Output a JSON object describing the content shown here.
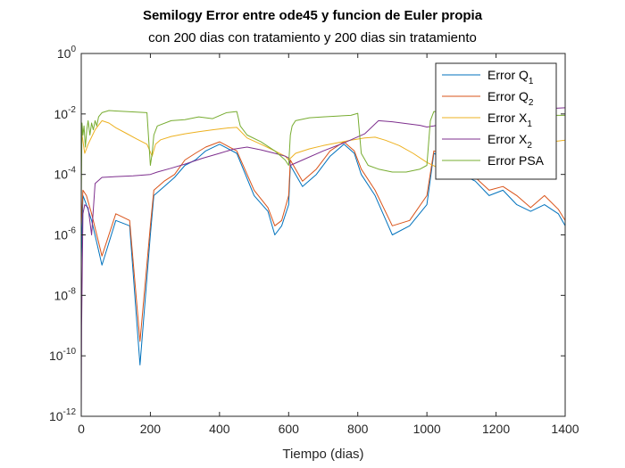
{
  "chart_data": {
    "type": "line",
    "title": "Semilogy Error entre ode45 y funcion de Euler propia",
    "subtitle": "con 200 dias con tratamiento y 200 dias sin tratamiento",
    "xlabel": "Tiempo (dias)",
    "ylabel": "",
    "xlim": [
      0,
      1400
    ],
    "ylim": [
      1e-12,
      1
    ],
    "y_scale": "log",
    "x_ticks": [
      0,
      200,
      400,
      600,
      800,
      1000,
      1200,
      1400
    ],
    "y_ticks": [
      {
        "value": 1e-12,
        "base": "10",
        "exp": "-12"
      },
      {
        "value": 1e-10,
        "base": "10",
        "exp": "-10"
      },
      {
        "value": 1e-08,
        "base": "10",
        "exp": "-8"
      },
      {
        "value": 1e-06,
        "base": "10",
        "exp": "-6"
      },
      {
        "value": 0.0001,
        "base": "10",
        "exp": "-4"
      },
      {
        "value": 0.01,
        "base": "10",
        "exp": "-2"
      },
      {
        "value": 1,
        "base": "10",
        "exp": "0"
      }
    ],
    "grid": false,
    "legend_position": "top-right",
    "series": [
      {
        "name": "Error Q1",
        "label_base": "Error Q",
        "label_sub": "1",
        "color": "#0072BD",
        "x": [
          0,
          5,
          15,
          30,
          60,
          100,
          140,
          170,
          200,
          210,
          240,
          270,
          300,
          330,
          360,
          400,
          450,
          500,
          540,
          560,
          580,
          600,
          605,
          640,
          680,
          720,
          760,
          790,
          810,
          850,
          900,
          950,
          1000,
          1020,
          1060,
          1100,
          1140,
          1180,
          1220,
          1260,
          1300,
          1340,
          1380,
          1400
        ],
        "y": [
          1e-07,
          2e-05,
          1e-05,
          3e-06,
          1e-07,
          3e-06,
          2e-06,
          5e-11,
          1e-06,
          2e-05,
          4e-05,
          8e-05,
          0.0002,
          0.0003,
          0.0006,
          0.001,
          0.0005,
          2e-05,
          6e-06,
          1e-06,
          2e-06,
          1e-05,
          0.0002,
          4e-05,
          0.0001,
          0.0004,
          0.001,
          0.0005,
          0.0001,
          2e-05,
          1e-06,
          2e-06,
          1e-05,
          0.0005,
          0.0003,
          0.0001,
          6e-05,
          2e-05,
          3e-05,
          1e-05,
          6e-06,
          1e-05,
          5e-06,
          2e-06
        ]
      },
      {
        "name": "Error Q2",
        "label_base": "Error Q",
        "label_sub": "2",
        "color": "#D95319",
        "x": [
          0,
          5,
          15,
          30,
          60,
          100,
          140,
          170,
          200,
          210,
          240,
          270,
          300,
          330,
          360,
          400,
          450,
          500,
          540,
          560,
          580,
          600,
          605,
          640,
          680,
          720,
          760,
          790,
          810,
          850,
          900,
          950,
          1000,
          1020,
          1060,
          1100,
          1140,
          1180,
          1220,
          1260,
          1300,
          1340,
          1380,
          1400
        ],
        "y": [
          2e-06,
          3e-05,
          2e-05,
          5e-06,
          2e-07,
          5e-06,
          3e-06,
          3e-10,
          2e-06,
          3e-05,
          6e-05,
          0.0001,
          0.0003,
          0.0005,
          0.0008,
          0.0012,
          0.0006,
          3e-05,
          8e-06,
          2e-06,
          3e-06,
          2e-05,
          0.0003,
          6e-05,
          0.00015,
          0.0006,
          0.0012,
          0.0006,
          0.00015,
          3e-05,
          2e-06,
          3e-06,
          2e-05,
          0.0006,
          0.0004,
          0.00015,
          8e-05,
          3e-05,
          4e-05,
          2e-05,
          8e-06,
          2e-05,
          7e-06,
          3e-06
        ]
      },
      {
        "name": "Error X1",
        "label_base": "Error X",
        "label_sub": "1",
        "color": "#EDB120",
        "x": [
          0,
          10,
          20,
          40,
          60,
          80,
          100,
          130,
          160,
          190,
          205,
          215,
          230,
          260,
          300,
          340,
          380,
          420,
          450,
          480,
          520,
          560,
          590,
          600,
          620,
          660,
          700,
          740,
          780,
          820,
          850,
          880,
          920,
          960,
          1000,
          1040,
          1080,
          1120,
          1160,
          1200,
          1240,
          1280,
          1320,
          1360,
          1400
        ],
        "y": [
          0.003,
          0.0005,
          0.001,
          0.003,
          0.006,
          0.005,
          0.0035,
          0.0023,
          0.0015,
          0.001,
          0.0004,
          0.001,
          0.0014,
          0.0018,
          0.0022,
          0.0026,
          0.003,
          0.0034,
          0.0036,
          0.0016,
          0.001,
          0.0006,
          0.0004,
          0.0003,
          0.0005,
          0.0007,
          0.0009,
          0.0011,
          0.00135,
          0.0016,
          0.0017,
          0.00135,
          0.0009,
          0.0005,
          0.00025,
          0.00015,
          0.0002,
          0.0003,
          0.00045,
          0.0006,
          0.00075,
          0.0009,
          0.00105,
          0.0012,
          0.00135
        ]
      },
      {
        "name": "Error X2",
        "label_base": "Error X",
        "label_sub": "2",
        "color": "#7E2F8E",
        "x": [
          0,
          1,
          3,
          5,
          10,
          20,
          30,
          40,
          60,
          100,
          150,
          200,
          220,
          260,
          300,
          350,
          400,
          440,
          480,
          520,
          560,
          590,
          600,
          605,
          640,
          700,
          760,
          820,
          860,
          900,
          940,
          980,
          1000,
          1020,
          1060,
          1100,
          1150,
          1200,
          1250,
          1300,
          1350,
          1400
        ],
        "y": [
          1e-12,
          1e-09,
          1e-07,
          5e-06,
          1e-05,
          8e-06,
          1e-06,
          5e-05,
          8e-05,
          8.5e-05,
          9e-05,
          0.0001,
          0.00012,
          0.00016,
          0.00022,
          0.00034,
          0.0005,
          0.00068,
          0.0008,
          0.00065,
          0.0005,
          0.0004,
          0.00035,
          0.0002,
          0.0003,
          0.0006,
          0.0011,
          0.0022,
          0.006,
          0.0055,
          0.0048,
          0.0042,
          0.0037,
          0.004,
          0.005,
          0.0065,
          0.0085,
          0.01,
          0.012,
          0.0135,
          0.015,
          0.016
        ]
      },
      {
        "name": "Error PSA",
        "label_base": "Error PSA",
        "label_sub": "",
        "color": "#77AC30",
        "x": [
          0,
          2,
          5,
          8,
          12,
          16,
          20,
          25,
          30,
          35,
          40,
          45,
          50,
          60,
          80,
          100,
          130,
          160,
          190,
          200,
          205,
          210,
          220,
          260,
          300,
          340,
          380,
          420,
          450,
          460,
          480,
          520,
          560,
          590,
          600,
          605,
          610,
          620,
          660,
          700,
          740,
          780,
          800,
          810,
          830,
          860,
          900,
          940,
          980,
          1000,
          1010,
          1020,
          1060,
          1100,
          1150,
          1200,
          1250,
          1300,
          1350,
          1400
        ],
        "y": [
          1e-05,
          0.005,
          0.002,
          0.004,
          0.0008,
          0.003,
          0.006,
          0.002,
          0.005,
          0.003,
          0.006,
          0.004,
          0.008,
          0.011,
          0.013,
          0.0125,
          0.012,
          0.0115,
          0.011,
          0.0002,
          0.0005,
          0.002,
          0.004,
          0.006,
          0.0065,
          0.008,
          0.007,
          0.011,
          0.012,
          0.004,
          0.002,
          0.0012,
          0.0006,
          0.0003,
          0.0002,
          0.002,
          0.004,
          0.006,
          0.0075,
          0.008,
          0.0085,
          0.009,
          0.0105,
          0.0005,
          0.0002,
          0.00015,
          0.00012,
          0.00012,
          0.00015,
          0.0002,
          0.006,
          0.012,
          0.011,
          0.01,
          0.011,
          0.0095,
          0.01,
          0.0095,
          0.009,
          0.009
        ]
      }
    ]
  }
}
